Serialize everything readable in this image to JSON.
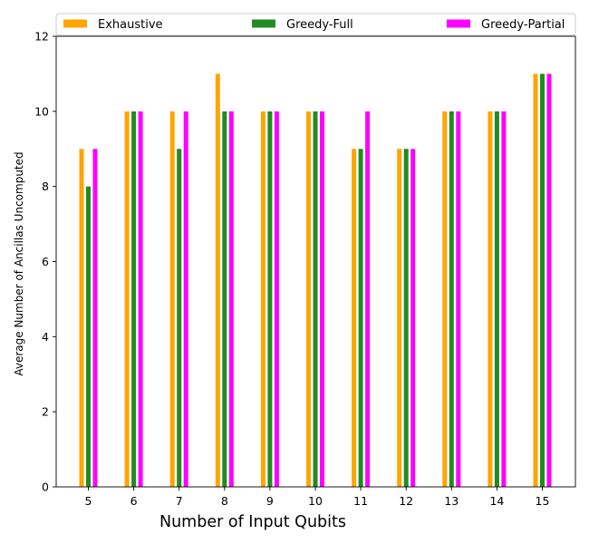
{
  "chart_data": {
    "type": "bar",
    "categories": [
      "5",
      "6",
      "7",
      "8",
      "9",
      "10",
      "11",
      "12",
      "13",
      "14",
      "15"
    ],
    "series": [
      {
        "name": "Exhaustive",
        "color": "#FFA500",
        "values": [
          9,
          10,
          10,
          11,
          10,
          10,
          9,
          9,
          10,
          10,
          11
        ]
      },
      {
        "name": "Greedy-Full",
        "color": "#228B22",
        "values": [
          8,
          10,
          9,
          10,
          10,
          10,
          9,
          9,
          10,
          10,
          11
        ]
      },
      {
        "name": "Greedy-Partial",
        "color": "#FF00FF",
        "values": [
          9,
          10,
          10,
          10,
          10,
          10,
          10,
          9,
          10,
          10,
          11
        ]
      }
    ],
    "xlabel": "Number of Input Qubits",
    "ylabel": "Average Number of Ancillas Uncomputed",
    "ylim": [
      0,
      12
    ],
    "yticks": [
      0,
      2,
      4,
      6,
      8,
      10,
      12
    ],
    "grid": false,
    "legend_position": "top"
  }
}
